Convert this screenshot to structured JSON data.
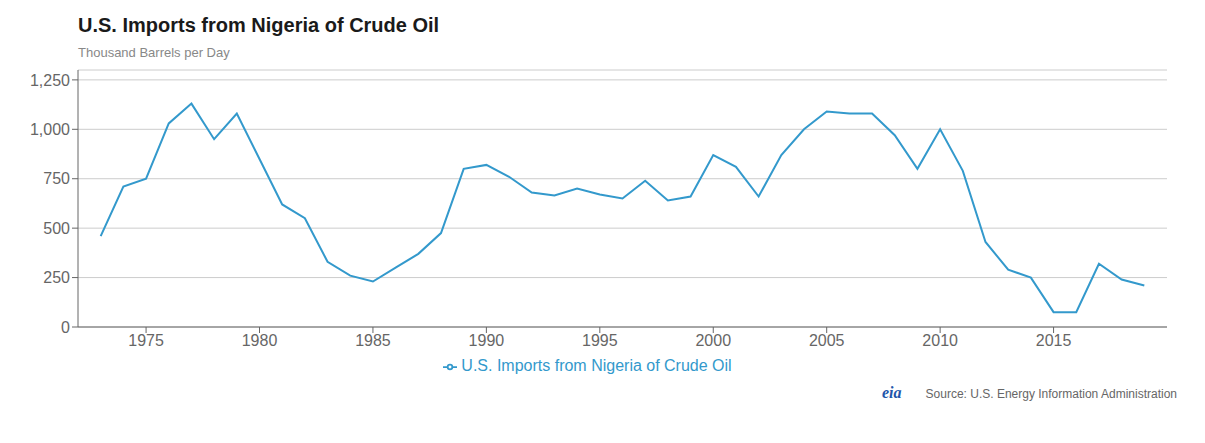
{
  "chart_data": {
    "type": "line",
    "title": "U.S. Imports from Nigeria of Crude Oil",
    "ylabel": "Thousand Barrels per Day",
    "x": [
      1973,
      1974,
      1975,
      1976,
      1977,
      1978,
      1979,
      1980,
      1981,
      1982,
      1983,
      1984,
      1985,
      1986,
      1987,
      1988,
      1989,
      1990,
      1991,
      1992,
      1993,
      1994,
      1995,
      1996,
      1997,
      1998,
      1999,
      2000,
      2001,
      2002,
      2003,
      2004,
      2005,
      2006,
      2007,
      2008,
      2009,
      2010,
      2011,
      2012,
      2013,
      2014,
      2015,
      2016,
      2017,
      2018,
      2019
    ],
    "series": [
      {
        "name": "U.S. Imports from Nigeria of Crude Oil",
        "color": "#3399cc",
        "values": [
          460,
          710,
          750,
          1030,
          1130,
          950,
          1080,
          850,
          620,
          550,
          330,
          260,
          230,
          300,
          370,
          475,
          800,
          820,
          760,
          680,
          665,
          700,
          670,
          650,
          740,
          640,
          660,
          870,
          810,
          660,
          870,
          1000,
          1090,
          1080,
          1080,
          970,
          800,
          1000,
          790,
          430,
          290,
          250,
          75,
          75,
          320,
          240,
          210
        ]
      }
    ],
    "xlim": [
      1972,
      2020
    ],
    "xticks": [
      1975,
      1980,
      1985,
      1990,
      1995,
      2000,
      2005,
      2010,
      2015
    ],
    "ylim": [
      0,
      1300
    ],
    "yticks": [
      0,
      250,
      500,
      750,
      {
        "value": 1000,
        "label": "1,000"
      },
      {
        "value": 1250,
        "label": "1,250"
      }
    ],
    "grid": true,
    "legend": "bottom",
    "annotations": [
      "Source: U.S. Energy Information Administration",
      "eia"
    ]
  }
}
